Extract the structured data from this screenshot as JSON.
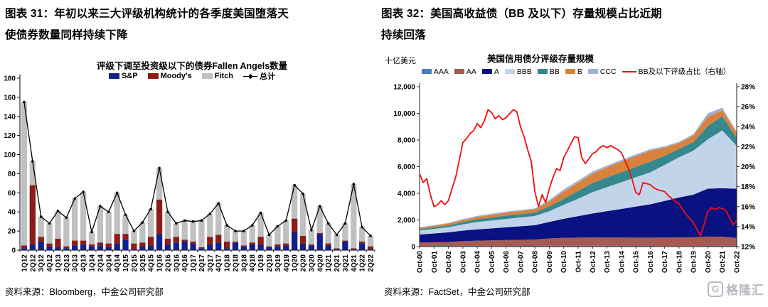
{
  "left": {
    "header1": "图表 31：年初以来三大评级机构统计的各季度美国堕落天",
    "header2": "使债券数量同样持续下降",
    "source": "资料来源：Bloomberg，中金公司研究部"
  },
  "right": {
    "header1": "图表 32：美国高收益债（BB 及以下）存量规模占比近期",
    "header2": "持续回落",
    "source": "资料来源：FactSet，中金公司研究部"
  },
  "watermark": {
    "icon": "G",
    "text": "格隆汇"
  },
  "chart_data": [
    {
      "type": "bar",
      "title": "评级下调至投资级以下的债券Fallen Angels数量",
      "xlabel": "",
      "ylabel": "",
      "ylim": [
        0,
        180
      ],
      "y_ticks": [
        0,
        20,
        40,
        60,
        80,
        100,
        120,
        140,
        160,
        180
      ],
      "grid": false,
      "legend_position": "top",
      "categories": [
        "1Q12",
        "2Q12",
        "3Q12",
        "4Q12",
        "1Q13",
        "2Q13",
        "3Q13",
        "4Q13",
        "1Q14",
        "2Q14",
        "3Q14",
        "4Q14",
        "1Q15",
        "2Q15",
        "3Q15",
        "4Q15",
        "1Q16",
        "2Q16",
        "3Q16",
        "4Q16",
        "1Q17",
        "2Q17",
        "3Q17",
        "4Q17",
        "1Q18",
        "2Q18",
        "3Q18",
        "4Q18",
        "1Q19",
        "2Q19",
        "3Q19",
        "4Q19",
        "1Q20",
        "2Q20",
        "3Q20",
        "4Q20",
        "1Q21",
        "2Q21",
        "3Q21",
        "4Q21",
        "1Q22",
        "2Q22"
      ],
      "series": [
        {
          "name": "S&P",
          "color": "#131f8b",
          "values": [
            2,
            6,
            9,
            4,
            3,
            2,
            5,
            6,
            4,
            5,
            3,
            7,
            11,
            1,
            4,
            5,
            17,
            6,
            8,
            9,
            7,
            2,
            6,
            8,
            2,
            8,
            4,
            6,
            6,
            3,
            4,
            5,
            19,
            7,
            5,
            17,
            5,
            1,
            9,
            1,
            7,
            1
          ]
        },
        {
          "name": "Moody's",
          "color": "#8e1c12",
          "values": [
            3,
            62,
            5,
            3,
            9,
            2,
            5,
            4,
            2,
            3,
            4,
            10,
            6,
            6,
            4,
            9,
            36,
            6,
            6,
            2,
            2,
            1,
            8,
            8,
            7,
            1,
            1,
            2,
            8,
            1,
            2,
            2,
            14,
            8,
            1,
            1,
            2,
            1,
            1,
            1,
            2,
            3
          ]
        },
        {
          "name": "Fitch",
          "color": "#c0c0c0",
          "values": [
            150,
            25,
            21,
            21,
            29,
            30,
            44,
            51,
            13,
            38,
            33,
            43,
            20,
            13,
            21,
            29,
            33,
            28,
            14,
            20,
            21,
            28,
            24,
            33,
            17,
            11,
            15,
            18,
            25,
            12,
            19,
            24,
            35,
            44,
            15,
            28,
            21,
            14,
            18,
            67,
            15,
            11
          ]
        }
      ],
      "line_series": {
        "name": "总计",
        "color": "#000000",
        "values": [
          155,
          93,
          35,
          28,
          41,
          34,
          54,
          61,
          19,
          46,
          40,
          60,
          37,
          20,
          29,
          43,
          86,
          40,
          28,
          31,
          30,
          31,
          38,
          49,
          26,
          20,
          20,
          26,
          39,
          16,
          25,
          31,
          68,
          59,
          21,
          46,
          28,
          16,
          28,
          69,
          24,
          15
        ]
      }
    },
    {
      "type": "area",
      "title": "美国信用债分评级存量规模",
      "unit": "十亿美元",
      "ylim_left": [
        0,
        12000
      ],
      "ylim_right": [
        12,
        28
      ],
      "y_ticks_left": [
        "0",
        "2,000",
        "4,000",
        "6,000",
        "8,000",
        "10,000",
        "12,000"
      ],
      "y_ticks_right": [
        "12%",
        "14%",
        "16%",
        "18%",
        "20%",
        "22%",
        "24%",
        "26%",
        "28%"
      ],
      "grid": false,
      "x": [
        "Oct-00",
        "Oct-01",
        "Oct-02",
        "Oct-03",
        "Oct-04",
        "Oct-05",
        "Oct-06",
        "Oct-07",
        "Oct-08",
        "Oct-09",
        "Oct-10",
        "Oct-11",
        "Oct-12",
        "Oct-13",
        "Oct-14",
        "Oct-15",
        "Oct-16",
        "Oct-17",
        "Oct-18",
        "Oct-19",
        "Oct-20",
        "Oct-21",
        "Oct-22"
      ],
      "series": [
        {
          "name": "AAA",
          "color": "#4a7ebb",
          "values": [
            45,
            45,
            45,
            48,
            50,
            50,
            50,
            55,
            55,
            60,
            60,
            60,
            60,
            60,
            55,
            55,
            55,
            50,
            50,
            50,
            55,
            60,
            50
          ]
        },
        {
          "name": "AA",
          "color": "#a65b51",
          "values": [
            270,
            280,
            300,
            360,
            395,
            415,
            435,
            455,
            475,
            555,
            600,
            615,
            630,
            620,
            625,
            620,
            620,
            630,
            640,
            650,
            700,
            680,
            600
          ]
        },
        {
          "name": "A",
          "color": "#0a1180",
          "values": [
            590,
            660,
            730,
            790,
            850,
            905,
            960,
            1020,
            1080,
            1240,
            1430,
            1610,
            1800,
            1980,
            2150,
            2330,
            2500,
            2750,
            3000,
            3200,
            3600,
            3640,
            3700
          ]
        },
        {
          "name": "BBB",
          "color": "#c2d4ea",
          "values": [
            300,
            340,
            380,
            470,
            550,
            590,
            630,
            660,
            690,
            800,
            1050,
            1300,
            1600,
            1800,
            2000,
            2200,
            2400,
            2700,
            3020,
            3300,
            3700,
            4340,
            3200
          ]
        },
        {
          "name": "BB",
          "color": "#35888f",
          "values": [
            105,
            120,
            140,
            175,
            210,
            230,
            250,
            250,
            250,
            350,
            450,
            580,
            700,
            730,
            750,
            780,
            800,
            700,
            620,
            650,
            1000,
            1060,
            600
          ]
        },
        {
          "name": "B",
          "color": "#d9823c",
          "values": [
            105,
            120,
            140,
            160,
            180,
            200,
            220,
            230,
            240,
            380,
            550,
            630,
            700,
            750,
            800,
            810,
            820,
            600,
            445,
            500,
            700,
            450,
            400
          ]
        },
        {
          "name": "CCC",
          "color": "#9fb2d6",
          "values": [
            35,
            40,
            45,
            60,
            70,
            75,
            80,
            80,
            80,
            120,
            150,
            150,
            150,
            140,
            130,
            125,
            120,
            100,
            95,
            100,
            250,
            200,
            80
          ]
        }
      ],
      "line_series": {
        "name": "BB及以下评级占比（右轴）",
        "color": "#f20d0d",
        "axis": "right",
        "values": [
          19.3,
          18.4,
          18.8,
          17.2,
          16.0,
          16.2,
          16.6,
          16.2,
          16.6,
          17.8,
          18.9,
          20.6,
          22.4,
          22.8,
          23.3,
          23.6,
          24.3,
          23.9,
          24.6,
          25.7,
          25.4,
          24.8,
          25.1,
          24.7,
          24.9,
          25.3,
          25.7,
          25.5,
          24.0,
          23.0,
          21.7,
          20.5,
          17.5,
          16.0,
          17.2,
          16.4,
          17.8,
          18.9,
          19.8,
          19.6,
          20.9,
          21.6,
          22.3,
          23.0,
          22.9,
          20.9,
          20.3,
          20.8,
          21.3,
          21.5,
          21.9,
          22.1,
          21.9,
          22.1,
          21.9,
          21.7,
          21.4,
          20.6,
          19.8,
          18.7,
          17.4,
          17.2,
          18.4,
          18.3,
          18.2,
          17.9,
          17.7,
          17.6,
          17.5,
          17.1,
          16.8,
          16.5,
          16.3,
          15.7,
          15.2,
          14.8,
          14.4,
          13.7,
          13.1,
          14.3,
          15.5,
          15.9,
          15.7,
          15.9,
          15.8,
          15.6,
          14.9,
          14.2,
          14.6
        ]
      }
    }
  ]
}
